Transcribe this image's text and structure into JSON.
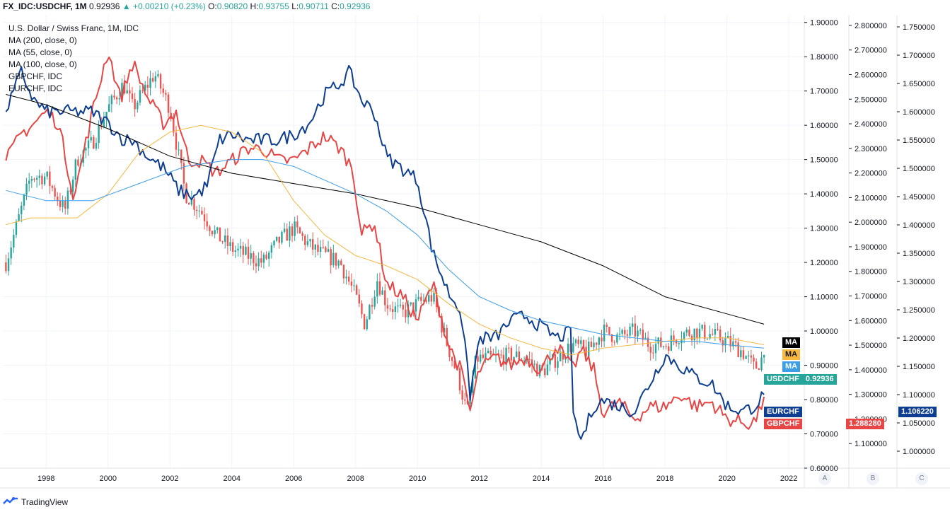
{
  "header": {
    "symbol": "FX_IDC:USDCHF, 1M",
    "price": "0.92936",
    "change": "+0.00210 (+0.23%)",
    "o_label": "O:",
    "o_value": "0.90820",
    "h_label": "H:",
    "h_value": "0.93755",
    "l_label": "L:",
    "l_value": "0.90711",
    "c_label": "C:",
    "c_value": "0.92936"
  },
  "legend": {
    "title": "U.S. Dollar / Swiss Franc, 1M, IDC",
    "items": [
      "MA (200, close, 0)",
      "MA (55, close, 0)",
      "MA (100, close, 0)",
      "GBPCHF, IDC",
      "EURCHF, IDC"
    ]
  },
  "badges": {
    "ma_black": "MA",
    "ma_orange": "MA",
    "ma_blue": "MA",
    "usdchf_name": "USDCHF",
    "usdchf_value": "0.92936",
    "eurchf_name": "EURCHF",
    "eurchf_value": "1.106220",
    "gbpchf_name": "GBPCHF",
    "gbpchf_value": "1.288280"
  },
  "scale_buttons": [
    "A",
    "B",
    "C"
  ],
  "footer": {
    "brand": "TradingView"
  },
  "colors": {
    "up": "#26a69a",
    "down": "#ef5350",
    "eurchf": "#0d3e91",
    "gbpchf": "#e84545",
    "ma200": "#000000",
    "ma55": "#f5b841",
    "ma100": "#3d9ee8"
  },
  "chart_data": {
    "type": "line",
    "title": "U.S. Dollar / Swiss Franc, 1M, IDC",
    "x_ticks": [
      "1998",
      "2000",
      "2002",
      "2004",
      "2006",
      "2008",
      "2010",
      "2012",
      "2014",
      "2016",
      "2018",
      "2020",
      "2022"
    ],
    "x_range": [
      1996.6,
      2022.5
    ],
    "axes": {
      "A": {
        "ticks": [
          "1.90000",
          "1.80000",
          "1.70000",
          "1.60000",
          "1.50000",
          "1.40000",
          "1.30000",
          "1.20000",
          "1.10000",
          "1.00000",
          "0.90000",
          "0.80000",
          "0.70000",
          "0.60000"
        ],
        "range": [
          0.6,
          1.92
        ]
      },
      "B": {
        "ticks": [
          "2.800000",
          "2.700000",
          "2.600000",
          "2.500000",
          "2.400000",
          "2.300000",
          "2.200000",
          "2.100000",
          "2.000000",
          "1.900000",
          "1.800000",
          "1.700000",
          "1.600000",
          "1.500000",
          "1.400000",
          "1.300000",
          "1.200000",
          "1.100000"
        ],
        "range": [
          1.0,
          2.84
        ]
      },
      "C": {
        "ticks": [
          "1.750000",
          "1.700000",
          "1.650000",
          "1.600000",
          "1.550000",
          "1.500000",
          "1.450000",
          "1.400000",
          "1.350000",
          "1.300000",
          "1.250000",
          "1.200000",
          "1.150000",
          "1.100000",
          "1.050000",
          "1.000000"
        ],
        "range": [
          0.97,
          1.77
        ]
      }
    },
    "series": [
      {
        "name": "USDCHF",
        "axis": "A",
        "style": "candles",
        "x": [
          1996.7,
          1997.5,
          1998.0,
          1998.6,
          1999.0,
          1999.5,
          2000.0,
          2000.5,
          2000.8,
          2001.5,
          2002.0,
          2002.5,
          2003.0,
          2003.5,
          2004.0,
          2004.5,
          2005.0,
          2005.5,
          2006.0,
          2006.5,
          2006.8,
          2007.5,
          2008.0,
          2008.3,
          2008.7,
          2009.0,
          2009.5,
          2010.0,
          2010.5,
          2011.0,
          2011.3,
          2011.6,
          2011.9,
          2012.5,
          2013.0,
          2013.5,
          2014.0,
          2014.5,
          2015.0,
          2015.5,
          2016.0,
          2016.5,
          2017.0,
          2017.5,
          2018.0,
          2018.5,
          2019.0,
          2019.5,
          2020.0,
          2020.5,
          2020.9,
          2021.2
        ],
        "values": [
          1.2,
          1.45,
          1.45,
          1.35,
          1.5,
          1.55,
          1.65,
          1.72,
          1.65,
          1.75,
          1.65,
          1.4,
          1.35,
          1.28,
          1.24,
          1.22,
          1.2,
          1.26,
          1.3,
          1.25,
          1.23,
          1.2,
          1.1,
          1.02,
          1.15,
          1.08,
          1.05,
          1.08,
          1.1,
          0.95,
          0.87,
          0.76,
          0.92,
          0.92,
          0.93,
          0.92,
          0.88,
          0.92,
          0.96,
          0.94,
          1.0,
          0.98,
          1.0,
          0.96,
          0.96,
          0.99,
          1.0,
          0.99,
          0.97,
          0.94,
          0.89,
          0.93
        ]
      },
      {
        "name": "GBPCHF",
        "axis": "B",
        "style": "line",
        "color": "#e84545",
        "x": [
          1996.7,
          1997.2,
          1997.6,
          1998.0,
          1998.4,
          1998.9,
          1999.5,
          2000.0,
          2000.4,
          2000.8,
          2001.3,
          2001.8,
          2002.2,
          2002.6,
          2003.0,
          2003.5,
          2004.0,
          2004.5,
          2005.0,
          2005.5,
          2006.0,
          2006.5,
          2007.0,
          2007.5,
          2007.9,
          2008.2,
          2008.6,
          2009.0,
          2009.5,
          2010.0,
          2010.5,
          2011.0,
          2011.4,
          2011.7,
          2012.0,
          2012.5,
          2013.0,
          2013.5,
          2014.0,
          2014.5,
          2015.0,
          2015.3,
          2015.7,
          2016.0,
          2016.5,
          2017.0,
          2017.5,
          2018.0,
          2018.5,
          2019.0,
          2019.5,
          2020.0,
          2020.4,
          2020.8,
          2021.0,
          2021.2
        ],
        "values": [
          2.25,
          2.36,
          2.4,
          2.45,
          2.4,
          2.1,
          2.45,
          2.7,
          2.5,
          2.65,
          2.5,
          2.4,
          2.45,
          2.25,
          2.25,
          2.2,
          2.25,
          2.3,
          2.3,
          2.25,
          2.25,
          2.3,
          2.35,
          2.3,
          2.22,
          1.95,
          2.0,
          1.75,
          1.7,
          1.6,
          1.75,
          1.5,
          1.4,
          1.23,
          1.4,
          1.45,
          1.42,
          1.45,
          1.4,
          1.5,
          1.4,
          1.48,
          1.4,
          1.22,
          1.27,
          1.2,
          1.25,
          1.25,
          1.3,
          1.25,
          1.27,
          1.2,
          1.19,
          1.18,
          1.21,
          1.29
        ]
      },
      {
        "name": "EURCHF",
        "axis": "C",
        "style": "line",
        "color": "#0d3e91",
        "x": [
          1996.7,
          1997.2,
          1997.6,
          1998.0,
          1998.5,
          1999.0,
          1999.5,
          2000.0,
          2000.5,
          2000.8,
          2001.3,
          2001.8,
          2002.3,
          2002.8,
          2003.2,
          2003.6,
          2004.0,
          2004.5,
          2005.0,
          2005.5,
          2006.0,
          2006.5,
          2007.0,
          2007.5,
          2007.8,
          2008.2,
          2008.6,
          2009.0,
          2009.5,
          2010.0,
          2010.5,
          2011.0,
          2011.4,
          2011.7,
          2012.0,
          2012.5,
          2013.0,
          2013.5,
          2014.0,
          2014.5,
          2014.95,
          2015.05,
          2015.3,
          2015.7,
          2016.0,
          2016.5,
          2017.0,
          2017.5,
          2018.0,
          2018.5,
          2019.0,
          2019.5,
          2020.0,
          2020.5,
          2020.9,
          2021.2
        ],
        "values": [
          1.6,
          1.67,
          1.62,
          1.6,
          1.6,
          1.6,
          1.6,
          1.58,
          1.55,
          1.55,
          1.52,
          1.5,
          1.46,
          1.45,
          1.47,
          1.55,
          1.56,
          1.55,
          1.55,
          1.55,
          1.56,
          1.58,
          1.63,
          1.65,
          1.67,
          1.62,
          1.6,
          1.52,
          1.5,
          1.48,
          1.35,
          1.28,
          1.25,
          1.1,
          1.2,
          1.2,
          1.23,
          1.24,
          1.22,
          1.2,
          1.21,
          1.05,
          1.02,
          1.08,
          1.09,
          1.08,
          1.07,
          1.12,
          1.17,
          1.15,
          1.13,
          1.12,
          1.08,
          1.07,
          1.08,
          1.1
        ]
      },
      {
        "name": "MA (200, close, 0)",
        "axis": "A",
        "style": "line",
        "color": "#000000",
        "x": [
          1996.7,
          1998.0,
          2000.0,
          2002.0,
          2004.0,
          2006.0,
          2008.0,
          2010.0,
          2012.0,
          2014.0,
          2016.0,
          2018.0,
          2020.0,
          2021.2
        ],
        "values": [
          1.69,
          1.66,
          1.59,
          1.51,
          1.46,
          1.43,
          1.4,
          1.36,
          1.31,
          1.26,
          1.19,
          1.1,
          1.05,
          1.02
        ]
      },
      {
        "name": "MA (55, close, 0)",
        "axis": "A",
        "style": "line",
        "color": "#f5b841",
        "x": [
          1996.7,
          1997.5,
          1999.0,
          2000.0,
          2001.0,
          2002.0,
          2003.0,
          2004.0,
          2005.0,
          2006.0,
          2007.0,
          2008.0,
          2009.0,
          2010.0,
          2011.0,
          2012.0,
          2013.0,
          2014.0,
          2015.0,
          2016.0,
          2017.0,
          2018.0,
          2019.0,
          2020.0,
          2021.2
        ],
        "values": [
          1.31,
          1.33,
          1.33,
          1.4,
          1.52,
          1.58,
          1.6,
          1.58,
          1.52,
          1.38,
          1.28,
          1.22,
          1.19,
          1.15,
          1.08,
          1.02,
          0.98,
          0.95,
          0.93,
          0.95,
          0.96,
          0.97,
          0.98,
          0.98,
          0.96
        ]
      },
      {
        "name": "MA (100, close, 0)",
        "axis": "A",
        "style": "line",
        "color": "#3d9ee8",
        "x": [
          1996.7,
          1998.0,
          1999.5,
          2001.0,
          2002.5,
          2004.0,
          2005.0,
          2006.0,
          2007.0,
          2008.0,
          2009.0,
          2010.0,
          2011.0,
          2012.0,
          2013.0,
          2014.0,
          2015.0,
          2016.0,
          2017.0,
          2018.0,
          2019.0,
          2020.0,
          2021.2
        ],
        "values": [
          1.41,
          1.38,
          1.38,
          1.43,
          1.48,
          1.5,
          1.5,
          1.48,
          1.44,
          1.4,
          1.35,
          1.28,
          1.18,
          1.1,
          1.06,
          1.03,
          1.01,
          0.99,
          0.98,
          0.97,
          0.97,
          0.96,
          0.95
        ]
      }
    ]
  }
}
